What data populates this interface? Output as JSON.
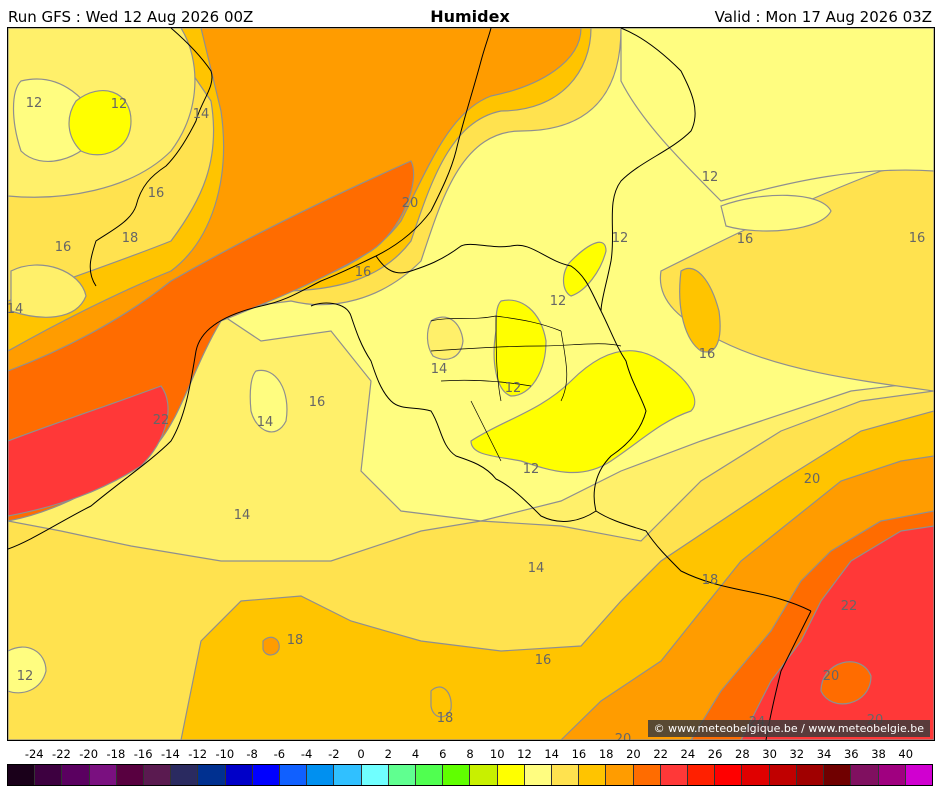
{
  "header": {
    "run": "Run GFS : Wed 12 Aug 2026 00Z",
    "title": "Humidex",
    "valid": "Valid : Mon 17 Aug 2026 03Z"
  },
  "credit": "© www.meteobelgique.be / www.meteobelgie.be",
  "colors": {
    "c12": "#fffd80",
    "c14": "#fff06a",
    "c16": "#ffe24f",
    "c18": "#ffc400",
    "c20": "#ff9c00",
    "c22": "#ff6c00",
    "c24": "#ff3838",
    "bright": "#ffff00",
    "contour": "#8f8f8f",
    "border": "#000000"
  },
  "contour_labels": [
    {
      "text": "12"
    },
    {
      "text": "12"
    },
    {
      "text": "14"
    },
    {
      "text": "16"
    },
    {
      "text": "18"
    },
    {
      "text": "16"
    },
    {
      "text": "14"
    },
    {
      "text": "20"
    },
    {
      "text": "16"
    },
    {
      "text": "22"
    },
    {
      "text": "14"
    },
    {
      "text": "16"
    },
    {
      "text": "14"
    },
    {
      "text": "14"
    },
    {
      "text": "12"
    },
    {
      "text": "12"
    },
    {
      "text": "12"
    },
    {
      "text": "12"
    },
    {
      "text": "12"
    },
    {
      "text": "16"
    },
    {
      "text": "16"
    },
    {
      "text": "16"
    },
    {
      "text": "20"
    },
    {
      "text": "18"
    },
    {
      "text": "22"
    },
    {
      "text": "20"
    },
    {
      "text": "14"
    },
    {
      "text": "16"
    },
    {
      "text": "18"
    },
    {
      "text": "18"
    },
    {
      "text": "12"
    },
    {
      "text": "20"
    },
    {
      "text": "20"
    },
    {
      "text": "24"
    }
  ],
  "scale": {
    "ticks": [
      "-24",
      "-22",
      "-20",
      "-18",
      "-16",
      "-14",
      "-12",
      "-10",
      "-8",
      "-6",
      "-4",
      "-2",
      "0",
      "2",
      "4",
      "6",
      "8",
      "10",
      "12",
      "14",
      "16",
      "18",
      "20",
      "22",
      "24",
      "26",
      "28",
      "30",
      "32",
      "34",
      "36",
      "38",
      "40"
    ],
    "colors": [
      "#1a001a",
      "#3d0040",
      "#5a0060",
      "#7a1080",
      "#580040",
      "#5a1a50",
      "#2a2a60",
      "#003090",
      "#0000c8",
      "#0000ff",
      "#1060ff",
      "#0090f0",
      "#30c0ff",
      "#70ffff",
      "#60ff90",
      "#50ff50",
      "#60ff00",
      "#c8f000",
      "#ffff00",
      "#fffd80",
      "#ffe24f",
      "#ffc400",
      "#ff9c00",
      "#ff6c00",
      "#ff3838",
      "#ff2000",
      "#ff0000",
      "#e00000",
      "#c00000",
      "#a00000",
      "#700000",
      "#801060",
      "#a00080",
      "#d000d0"
    ]
  }
}
